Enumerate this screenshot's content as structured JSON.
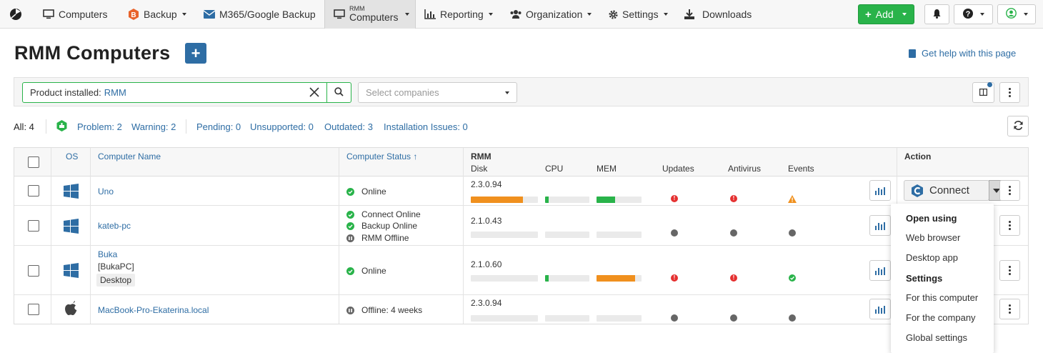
{
  "nav": {
    "items": [
      {
        "label": "Computers",
        "icon": "monitor-icon"
      },
      {
        "label": "Backup",
        "icon": "backup-icon"
      },
      {
        "label": "M365/Google Backup",
        "icon": "envelope-icon"
      },
      {
        "label_small": "RMM",
        "label": "Computers",
        "icon": "monitor-icon"
      },
      {
        "label": "Reporting",
        "icon": "bar-chart-icon"
      },
      {
        "label": "Organization",
        "icon": "users-icon"
      },
      {
        "label": "Settings",
        "icon": "gear-icon"
      },
      {
        "label": "Downloads",
        "icon": "download-icon"
      }
    ],
    "add_label": "Add"
  },
  "page": {
    "title": "RMM Computers",
    "help_link": "Get help with this page"
  },
  "filter": {
    "label": "Product installed:",
    "value": "RMM",
    "companies_placeholder": "Select companies"
  },
  "stats": {
    "all": "All: 4",
    "problem": "Problem: 2",
    "warning": "Warning: 2",
    "pending": "Pending: 0",
    "unsupported": "Unsupported: 0",
    "outdated": "Outdated: 3",
    "installation_issues": "Installation Issues: 0"
  },
  "table": {
    "headers": {
      "os": "OS",
      "name": "Computer Name",
      "status": "Computer Status ↑",
      "rmm": "RMM",
      "disk": "Disk",
      "cpu": "CPU",
      "mem": "MEM",
      "updates": "Updates",
      "antivirus": "Antivirus",
      "events": "Events",
      "action": "Action"
    },
    "rows": [
      {
        "os": "windows",
        "name": "Uno",
        "status": [
          "Online"
        ],
        "status_kind": [
          "ok"
        ],
        "version": "2.3.0.94",
        "disk": 0.78,
        "cpu": 0.08,
        "mem": 0.42,
        "disk_color": "#f0901e",
        "cpu_color": "#29b34a",
        "mem_color": "#29b34a",
        "updates": "error",
        "antivirus": "error",
        "events": "warning"
      },
      {
        "os": "windows",
        "name": "kateb-pc",
        "status": [
          "Connect Online",
          "Backup Online",
          "RMM Offline"
        ],
        "status_kind": [
          "ok",
          "ok",
          "off"
        ],
        "version": "2.1.0.43",
        "disk": 0,
        "cpu": 0,
        "mem": 0,
        "updates": "unknown",
        "antivirus": "unknown",
        "events": "unknown"
      },
      {
        "os": "windows",
        "name": "Buka",
        "subname": "[BukaPC]",
        "tag": "Desktop",
        "status": [
          "Online"
        ],
        "status_kind": [
          "ok"
        ],
        "version": "2.1.0.60",
        "disk": 0,
        "cpu": 0.08,
        "mem": 0.86,
        "cpu_color": "#29b34a",
        "mem_color": "#f0901e",
        "updates": "error",
        "antivirus": "error",
        "events": "ok"
      },
      {
        "os": "apple",
        "name": "MacBook-Pro-Ekaterina.local",
        "status": [
          "Offline: 4 weeks"
        ],
        "status_kind": [
          "off"
        ],
        "version": "2.3.0.94",
        "disk": 0,
        "cpu": 0,
        "mem": 0,
        "updates": "unknown",
        "antivirus": "unknown",
        "events": "unknown"
      }
    ]
  },
  "connect": {
    "label": "Connect"
  },
  "menu": {
    "open_using": "Open using",
    "web_browser": "Web browser",
    "desktop_app": "Desktop app",
    "settings": "Settings",
    "for_this_computer": "For this computer",
    "for_the_company": "For the company",
    "global_settings": "Global settings"
  },
  "colors": {
    "accent": "#2e6da4",
    "success": "#29b34a",
    "warning": "#f0901e",
    "danger": "#e53030"
  }
}
